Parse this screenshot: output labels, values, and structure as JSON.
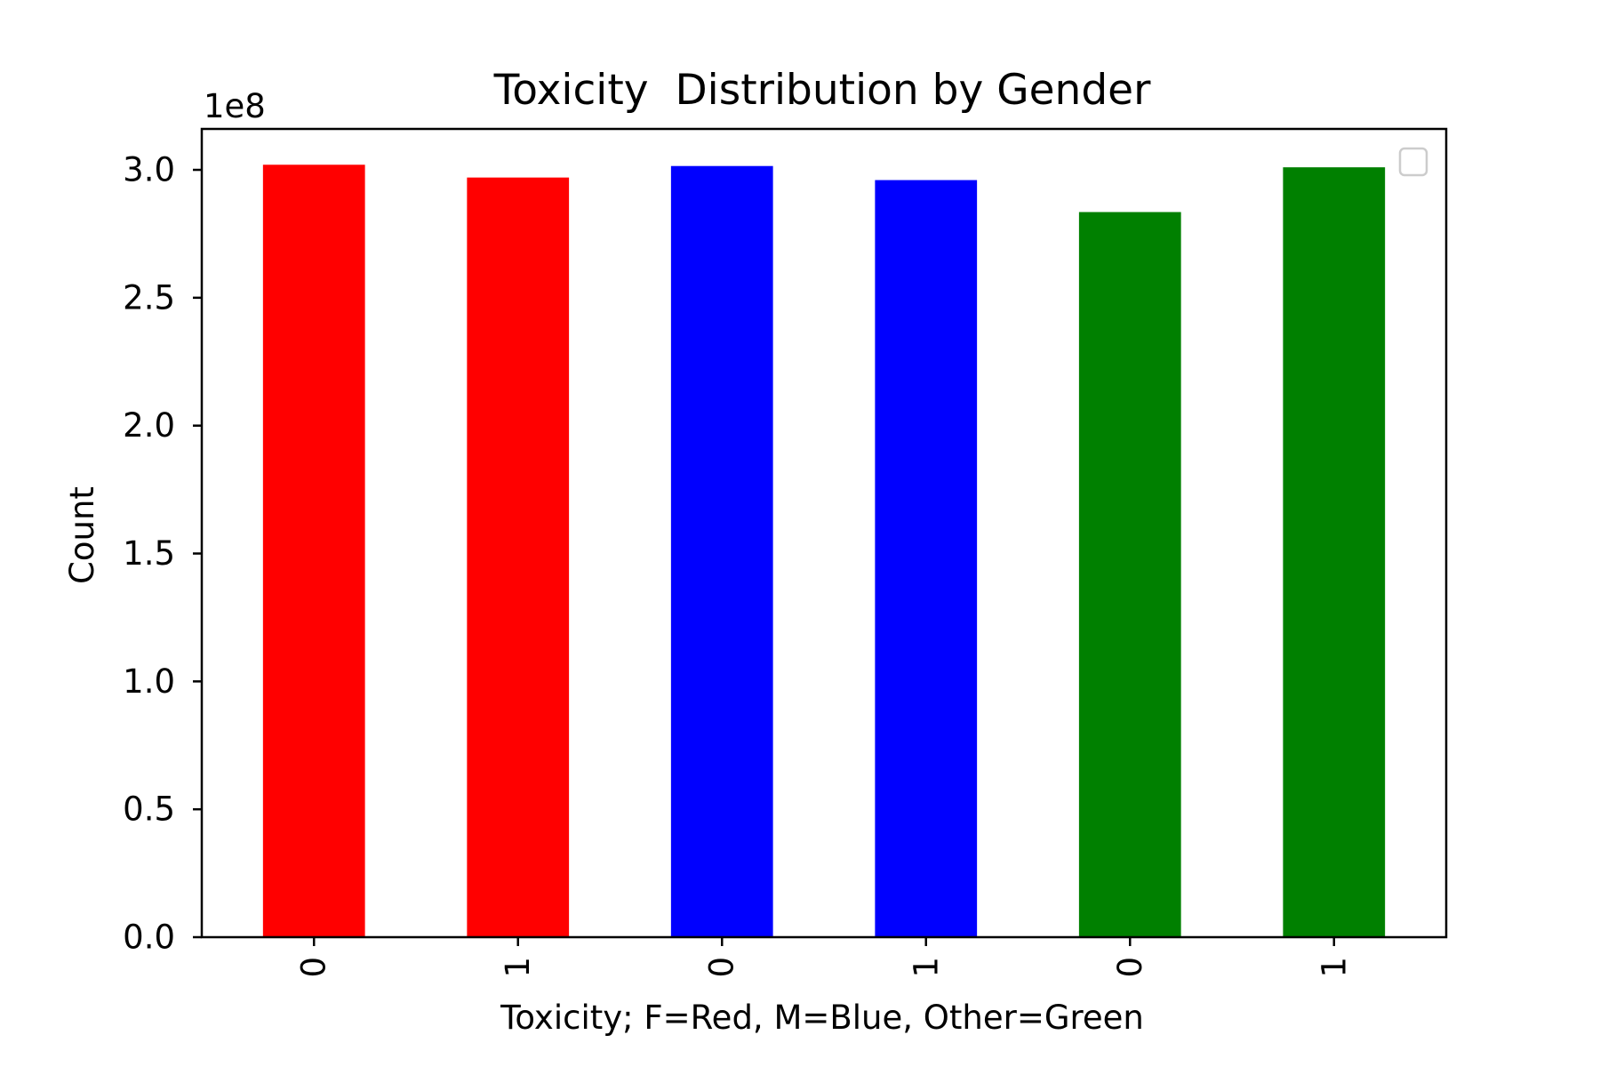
{
  "chart_data": {
    "type": "bar",
    "title": "Toxicity  Distribution by Gender",
    "xlabel": "Toxicity; F=Red, M=Blue, Other=Green",
    "ylabel": "Count",
    "y_multiplier_label": "1e8",
    "y_multiplier": 100000000,
    "categories": [
      "0",
      "1",
      "0",
      "1",
      "0",
      "1"
    ],
    "values": [
      302000000,
      297000000,
      301500000,
      296000000,
      283500000,
      301000000
    ],
    "bar_colors": [
      "#ff0000",
      "#ff0000",
      "#0000ff",
      "#0000ff",
      "#008000",
      "#008000"
    ],
    "ylim": [
      0,
      316000000
    ],
    "yticks": [
      0,
      50000000,
      100000000,
      150000000,
      200000000,
      250000000,
      300000000
    ],
    "ytick_labels": [
      "0.0",
      "0.5",
      "1.0",
      "1.5",
      "2.0",
      "2.5",
      "3.0"
    ],
    "grid": false,
    "legend": {
      "placement": "upper right",
      "entries": []
    }
  }
}
